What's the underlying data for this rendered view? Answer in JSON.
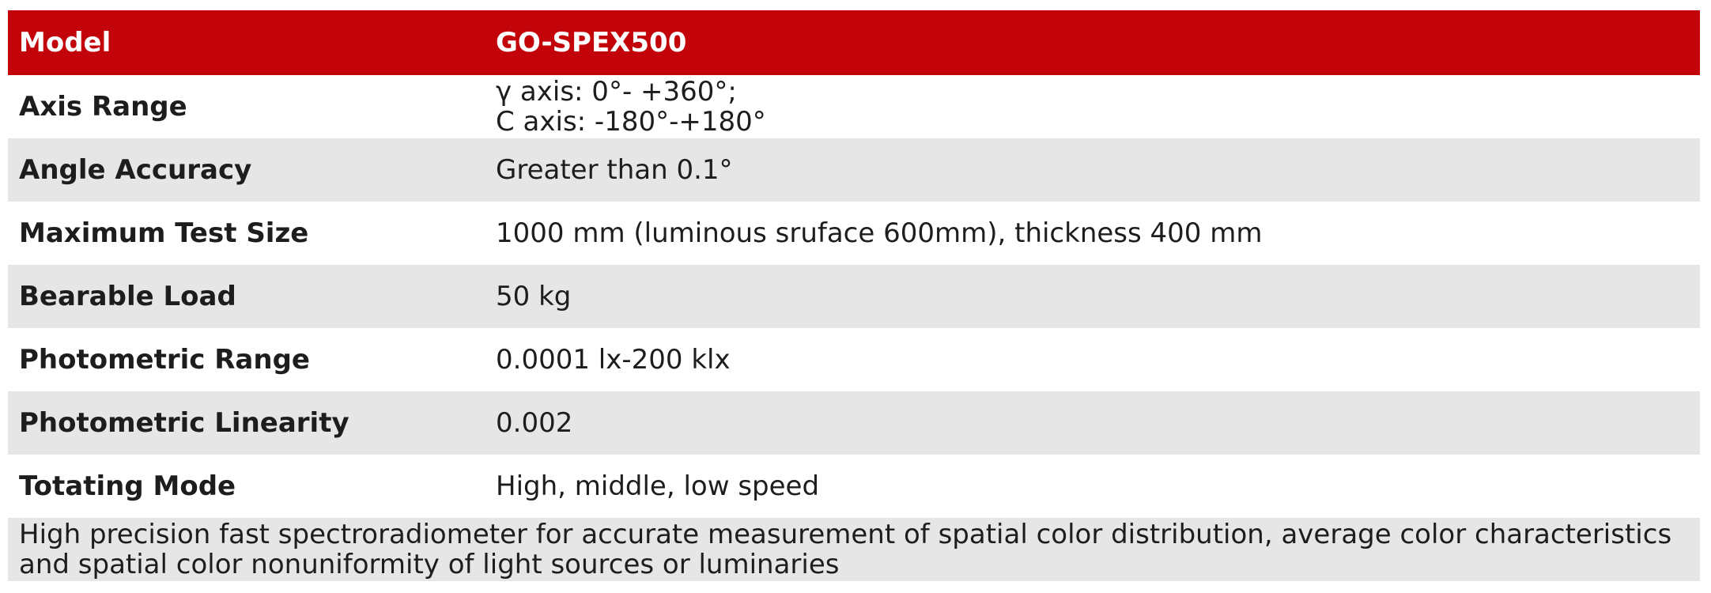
{
  "spec_table": {
    "header": {
      "label": "Model",
      "value": "GO-SPEX500"
    },
    "rows": [
      {
        "label": "Axis Range",
        "value": "γ axis: 0°- +360°;\nC axis: -180°-+180°"
      },
      {
        "label": "Angle Accuracy",
        "value": "Greater than 0.1°"
      },
      {
        "label": "Maximum Test Size",
        "value": "1000 mm (luminous sruface 600mm), thickness 400 mm"
      },
      {
        "label": "Bearable Load",
        "value": "50 kg"
      },
      {
        "label": "Photometric Range",
        "value": "0.0001 lx-200 klx"
      },
      {
        "label": "Photometric Linearity",
        "value": "0.002"
      },
      {
        "label": "Totating Mode",
        "value": "High, middle, low speed"
      }
    ],
    "footer": "High precision fast spectroradiometer for accurate measurement of spatial color distribution, average color characteristics and spatial color nonuniformity of light sources or luminaries"
  },
  "colors": {
    "header_bg": "#c2040a",
    "header_text": "#ffffff",
    "stripe_bg": "#e6e6e6",
    "body_text": "#1d1d1d"
  }
}
